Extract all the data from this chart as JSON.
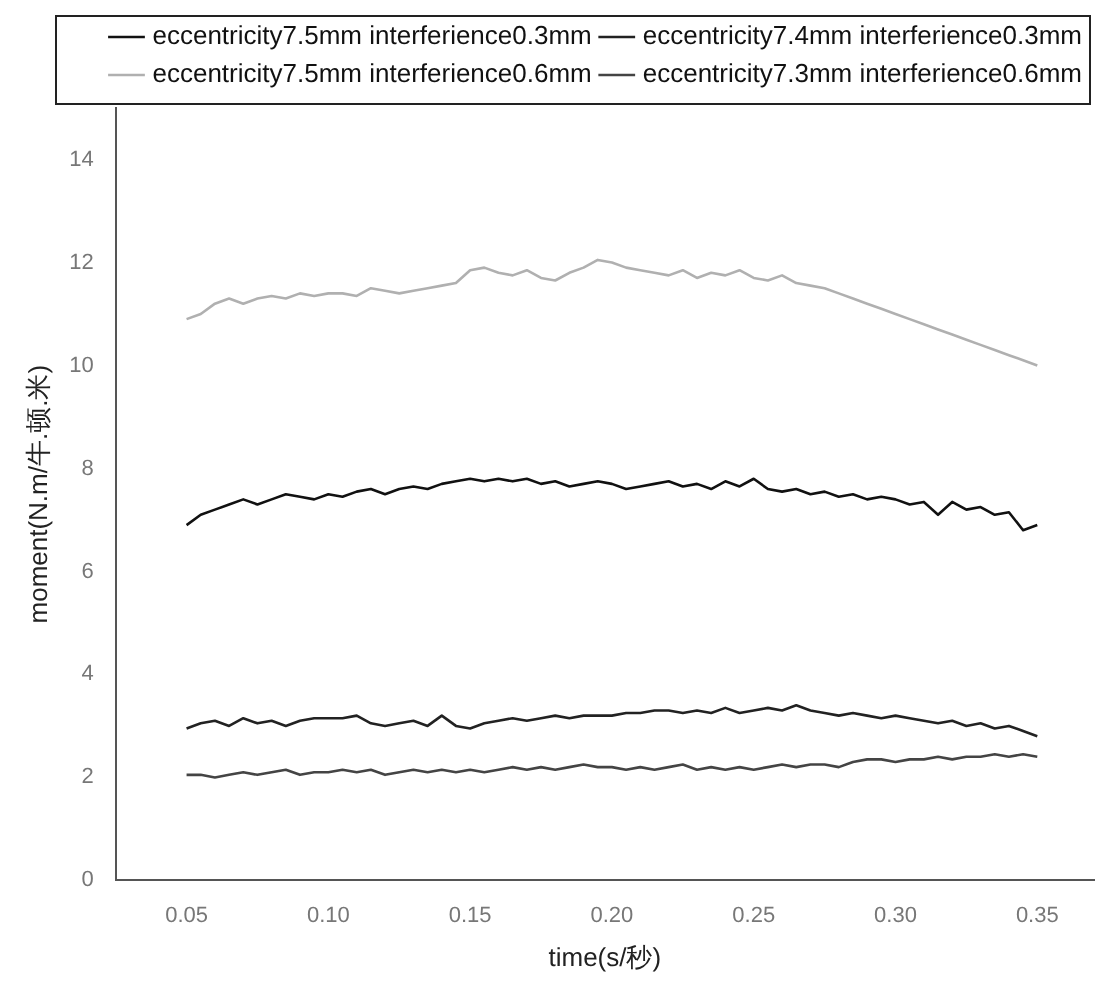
{
  "chart_data": {
    "type": "line",
    "xlabel": "time(s/秒)",
    "ylabel": "moment(N.m/牛.顿.米)",
    "x": [
      0.05,
      0.055,
      0.06,
      0.065,
      0.07,
      0.075,
      0.08,
      0.085,
      0.09,
      0.095,
      0.1,
      0.105,
      0.11,
      0.115,
      0.12,
      0.125,
      0.13,
      0.135,
      0.14,
      0.145,
      0.15,
      0.155,
      0.16,
      0.165,
      0.17,
      0.175,
      0.18,
      0.185,
      0.19,
      0.195,
      0.2,
      0.205,
      0.21,
      0.215,
      0.22,
      0.225,
      0.23,
      0.235,
      0.24,
      0.245,
      0.25,
      0.255,
      0.26,
      0.265,
      0.27,
      0.275,
      0.28,
      0.285,
      0.29,
      0.295,
      0.3,
      0.305,
      0.31,
      0.315,
      0.32,
      0.325,
      0.33,
      0.335,
      0.34,
      0.345,
      0.35
    ],
    "series": [
      {
        "name": "eccentricity7.5mm interferience0.3mm",
        "color": "#111111",
        "values": [
          6.9,
          7.1,
          7.2,
          7.3,
          7.4,
          7.3,
          7.4,
          7.5,
          7.45,
          7.4,
          7.5,
          7.45,
          7.55,
          7.6,
          7.5,
          7.6,
          7.65,
          7.6,
          7.7,
          7.75,
          7.8,
          7.75,
          7.8,
          7.75,
          7.8,
          7.7,
          7.75,
          7.65,
          7.7,
          7.75,
          7.7,
          7.6,
          7.65,
          7.7,
          7.75,
          7.65,
          7.7,
          7.6,
          7.75,
          7.65,
          7.8,
          7.6,
          7.55,
          7.6,
          7.5,
          7.55,
          7.45,
          7.5,
          7.4,
          7.45,
          7.4,
          7.3,
          7.35,
          7.1,
          7.35,
          7.2,
          7.25,
          7.1,
          7.15,
          6.8,
          6.9
        ]
      },
      {
        "name": "eccentricity7.4mm interferience0.3mm",
        "color": "#222222",
        "values": [
          2.95,
          3.05,
          3.1,
          3.0,
          3.15,
          3.05,
          3.1,
          3.0,
          3.1,
          3.15,
          3.15,
          3.15,
          3.2,
          3.05,
          3.0,
          3.05,
          3.1,
          3.0,
          3.2,
          3.0,
          2.95,
          3.05,
          3.1,
          3.15,
          3.1,
          3.15,
          3.2,
          3.15,
          3.2,
          3.2,
          3.2,
          3.25,
          3.25,
          3.3,
          3.3,
          3.25,
          3.3,
          3.25,
          3.35,
          3.25,
          3.3,
          3.35,
          3.3,
          3.4,
          3.3,
          3.25,
          3.2,
          3.25,
          3.2,
          3.15,
          3.2,
          3.15,
          3.1,
          3.05,
          3.1,
          3.0,
          3.05,
          2.95,
          3.0,
          2.9,
          2.8
        ]
      },
      {
        "name": "eccentricity7.5mm interferience0.6mm",
        "color": "#b0b0b0",
        "values": [
          10.9,
          11.0,
          11.2,
          11.3,
          11.2,
          11.3,
          11.35,
          11.3,
          11.4,
          11.35,
          11.4,
          11.4,
          11.35,
          11.5,
          11.45,
          11.4,
          11.45,
          11.5,
          11.55,
          11.6,
          11.85,
          11.9,
          11.8,
          11.75,
          11.85,
          11.7,
          11.65,
          11.8,
          11.9,
          12.05,
          12.0,
          11.9,
          11.85,
          11.8,
          11.75,
          11.85,
          11.7,
          11.8,
          11.75,
          11.85,
          11.7,
          11.65,
          11.75,
          11.6,
          11.55,
          11.5,
          11.4,
          11.3,
          11.2,
          11.1,
          11.0,
          10.9,
          10.8,
          10.7,
          10.6,
          10.5,
          10.4,
          10.3,
          10.2,
          10.1,
          10.0
        ]
      },
      {
        "name": "eccentricity7.3mm interferience0.6mm",
        "color": "#444444",
        "values": [
          2.05,
          2.05,
          2.0,
          2.05,
          2.1,
          2.05,
          2.1,
          2.15,
          2.05,
          2.1,
          2.1,
          2.15,
          2.1,
          2.15,
          2.05,
          2.1,
          2.15,
          2.1,
          2.15,
          2.1,
          2.15,
          2.1,
          2.15,
          2.2,
          2.15,
          2.2,
          2.15,
          2.2,
          2.25,
          2.2,
          2.2,
          2.15,
          2.2,
          2.15,
          2.2,
          2.25,
          2.15,
          2.2,
          2.15,
          2.2,
          2.15,
          2.2,
          2.25,
          2.2,
          2.25,
          2.25,
          2.2,
          2.3,
          2.35,
          2.35,
          2.3,
          2.35,
          2.35,
          2.4,
          2.35,
          2.4,
          2.4,
          2.45,
          2.4,
          2.45,
          2.4
        ]
      }
    ],
    "xlim": [
      0.025,
      0.37
    ],
    "xticks": [
      {
        "value": 0.05,
        "label": "0.05"
      },
      {
        "value": 0.1,
        "label": "0.10"
      },
      {
        "value": 0.15,
        "label": "0.15"
      },
      {
        "value": 0.2,
        "label": "0.20"
      },
      {
        "value": 0.25,
        "label": "0.25"
      },
      {
        "value": 0.3,
        "label": "0.30"
      },
      {
        "value": 0.35,
        "label": "0.35"
      }
    ],
    "ylim": [
      0,
      15
    ],
    "yticks": [
      0,
      2,
      4,
      6,
      8,
      10,
      12,
      14
    ],
    "legend": "top right",
    "marker": "none",
    "line_style": "solid",
    "grid": false
  }
}
